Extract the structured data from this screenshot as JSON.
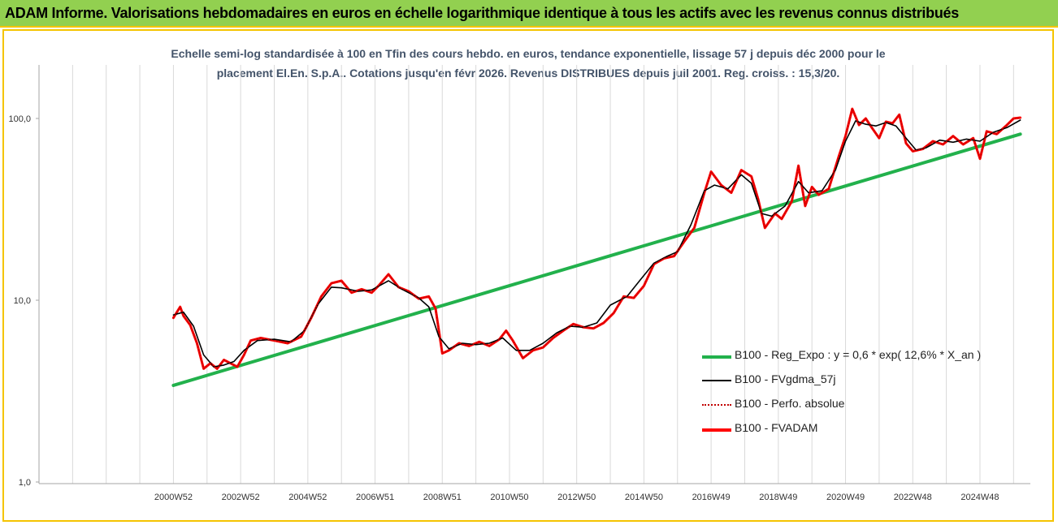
{
  "header": {
    "title": "ADAM Informe. Valorisations hebdomadaires en euros en échelle logarithmique identique à tous les actifs avec les revenus connus distribués"
  },
  "chart_data": {
    "type": "line",
    "title_line1": "Echelle semi-log standardisée à 100 en Tfin des cours hebdo. en euros, tendance exponentielle, lissage 57 j depuis déc 2000 pour le",
    "title_line2": "placement El.En. S.p.A.. Cotations jusqu'en févr 2026. Revenus DISTRIBUES depuis juil 2001. Reg. croiss. : 15,3/20.",
    "y_scale": "log",
    "ylim": [
      1,
      200
    ],
    "y_ticks": [
      1,
      10,
      100
    ],
    "y_tick_labels": [
      "1,0",
      "10,0",
      "100,0"
    ],
    "xlim": [
      1997,
      2026.5
    ],
    "x_ticks": [
      2001.0,
      2003.0,
      2005.0,
      2007.0,
      2009.0,
      2011.0,
      2013.0,
      2015.0,
      2017.0,
      2019.0,
      2021.0,
      2023.0,
      2025.0
    ],
    "x_tick_labels": [
      "2000W52",
      "2002W52",
      "2004W52",
      "2006W51",
      "2008W51",
      "2010W50",
      "2012W50",
      "2014W50",
      "2016W49",
      "2018W49",
      "2020W49",
      "2022W48",
      "2024W48"
    ],
    "grid": "vertical",
    "legend_position": "bottom-right",
    "series": [
      {
        "name": "B100 - Reg_Expo : y = 0,6 * exp( 12,6% *  X_an )",
        "color": "#22b14c",
        "style": "solid",
        "x": [
          2001.0,
          2026.2
        ],
        "y": [
          3.4,
          82
        ]
      },
      {
        "name": "B100 - FVgdma_57j",
        "color": "#000000",
        "style": "solid",
        "x": [
          2001.0,
          2001.3,
          2001.6,
          2001.9,
          2002.2,
          2002.5,
          2002.8,
          2003.1,
          2003.5,
          2004.0,
          2004.5,
          2004.9,
          2005.3,
          2005.7,
          2006.0,
          2006.5,
          2006.9,
          2007.4,
          2007.8,
          2008.3,
          2008.6,
          2008.9,
          2009.2,
          2009.6,
          2010.0,
          2010.4,
          2010.8,
          2011.2,
          2011.6,
          2012.0,
          2012.4,
          2012.8,
          2013.2,
          2013.6,
          2014.0,
          2014.5,
          2014.9,
          2015.3,
          2015.7,
          2016.0,
          2016.4,
          2016.8,
          2017.1,
          2017.5,
          2017.9,
          2018.2,
          2018.5,
          2018.8,
          2019.2,
          2019.6,
          2019.9,
          2020.3,
          2020.7,
          2021.0,
          2021.3,
          2021.6,
          2021.9,
          2022.2,
          2022.5,
          2022.8,
          2023.1,
          2023.4,
          2023.8,
          2024.2,
          2024.6,
          2025.0,
          2025.4,
          2025.8,
          2026.2
        ],
        "y": [
          8.3,
          8.6,
          7.2,
          5.0,
          4.3,
          4.4,
          4.6,
          5.3,
          6.0,
          6.1,
          5.9,
          6.8,
          9.5,
          11.8,
          11.7,
          11.2,
          11.4,
          12.8,
          11.5,
          10.3,
          9.2,
          6.3,
          5.4,
          5.8,
          5.7,
          5.8,
          6.2,
          5.3,
          5.3,
          5.8,
          6.6,
          7.2,
          7.1,
          7.5,
          9.4,
          10.5,
          13.0,
          16.0,
          17.5,
          18.5,
          26.0,
          40.0,
          43.0,
          41.0,
          49.0,
          44.0,
          30.0,
          29.0,
          33.0,
          45.0,
          39.0,
          40.0,
          52.0,
          75.0,
          97.0,
          93.0,
          91.0,
          95.0,
          91.0,
          78.0,
          67.0,
          69.0,
          76.0,
          74.0,
          77.0,
          75.0,
          84.0,
          89.0,
          98.0
        ]
      },
      {
        "name": "B100 - Perfo. absolue",
        "color": "#c00000",
        "style": "dotted",
        "x": [
          2001.0,
          2001.2,
          2001.3,
          2001.5,
          2001.7,
          2001.9,
          2002.1,
          2002.3,
          2002.5,
          2002.7,
          2002.9,
          2003.1,
          2003.3,
          2003.6,
          2004.0,
          2004.4,
          2004.8,
          2005.1,
          2005.4,
          2005.7,
          2006.0,
          2006.3,
          2006.6,
          2006.9,
          2007.1,
          2007.4,
          2007.7,
          2008.0,
          2008.3,
          2008.6,
          2008.8,
          2009.0,
          2009.2,
          2009.5,
          2009.8,
          2010.1,
          2010.4,
          2010.7,
          2010.9,
          2011.1,
          2011.4,
          2011.7,
          2012.0,
          2012.3,
          2012.6,
          2012.9,
          2013.2,
          2013.5,
          2013.8,
          2014.1,
          2014.4,
          2014.7,
          2015.0,
          2015.3,
          2015.6,
          2015.9,
          2016.2,
          2016.5,
          2016.8,
          2017.0,
          2017.3,
          2017.6,
          2017.9,
          2018.2,
          2018.4,
          2018.6,
          2018.9,
          2019.1,
          2019.4,
          2019.6,
          2019.8,
          2020.0,
          2020.2,
          2020.5,
          2020.8,
          2021.0,
          2021.2,
          2021.4,
          2021.6,
          2021.8,
          2022.0,
          2022.2,
          2022.4,
          2022.6,
          2022.8,
          2023.0,
          2023.3,
          2023.6,
          2023.9,
          2024.2,
          2024.5,
          2024.8,
          2025.0,
          2025.2,
          2025.5,
          2025.8,
          2026.0,
          2026.2
        ],
        "y": [
          8.0,
          9.2,
          8.2,
          7.3,
          5.8,
          4.2,
          4.5,
          4.2,
          4.7,
          4.5,
          4.3,
          5.0,
          6.0,
          6.2,
          6.0,
          5.8,
          6.3,
          8.0,
          10.5,
          12.4,
          12.8,
          11.0,
          11.5,
          11.0,
          12.0,
          13.9,
          11.8,
          11.2,
          10.2,
          10.5,
          9.0,
          5.1,
          5.3,
          5.8,
          5.6,
          5.9,
          5.6,
          6.1,
          6.8,
          6.0,
          4.8,
          5.3,
          5.5,
          6.2,
          6.8,
          7.4,
          7.1,
          7.0,
          7.5,
          8.5,
          10.5,
          10.3,
          12.0,
          15.8,
          17.0,
          17.5,
          21.0,
          25.0,
          39.0,
          51.0,
          43.0,
          39.0,
          52.0,
          48.0,
          36.0,
          25.0,
          30.0,
          28.0,
          35.0,
          55.0,
          33.0,
          42.0,
          38.0,
          41.0,
          62.0,
          80.0,
          113.0,
          92.0,
          100.0,
          88.0,
          78.0,
          96.0,
          94.0,
          105.0,
          73.0,
          66.0,
          68.0,
          75.0,
          72.0,
          80.0,
          72.0,
          78.0,
          60.0,
          85.0,
          82.0,
          92.0,
          100.0,
          101.0
        ]
      },
      {
        "name": "B100 - FVADAM",
        "color": "#ff0000",
        "style": "solid",
        "x": [
          2001.0,
          2001.2,
          2001.3,
          2001.5,
          2001.7,
          2001.9,
          2002.1,
          2002.3,
          2002.5,
          2002.7,
          2002.9,
          2003.1,
          2003.3,
          2003.6,
          2004.0,
          2004.4,
          2004.8,
          2005.1,
          2005.4,
          2005.7,
          2006.0,
          2006.3,
          2006.6,
          2006.9,
          2007.1,
          2007.4,
          2007.7,
          2008.0,
          2008.3,
          2008.6,
          2008.8,
          2009.0,
          2009.2,
          2009.5,
          2009.8,
          2010.1,
          2010.4,
          2010.7,
          2010.9,
          2011.1,
          2011.4,
          2011.7,
          2012.0,
          2012.3,
          2012.6,
          2012.9,
          2013.2,
          2013.5,
          2013.8,
          2014.1,
          2014.4,
          2014.7,
          2015.0,
          2015.3,
          2015.6,
          2015.9,
          2016.2,
          2016.5,
          2016.8,
          2017.0,
          2017.3,
          2017.6,
          2017.9,
          2018.2,
          2018.4,
          2018.6,
          2018.9,
          2019.1,
          2019.4,
          2019.6,
          2019.8,
          2020.0,
          2020.2,
          2020.5,
          2020.8,
          2021.0,
          2021.2,
          2021.4,
          2021.6,
          2021.8,
          2022.0,
          2022.2,
          2022.4,
          2022.6,
          2022.8,
          2023.0,
          2023.3,
          2023.6,
          2023.9,
          2024.2,
          2024.5,
          2024.8,
          2025.0,
          2025.2,
          2025.5,
          2025.8,
          2026.0,
          2026.2
        ],
        "y": [
          8.0,
          9.2,
          8.2,
          7.3,
          5.8,
          4.2,
          4.5,
          4.2,
          4.7,
          4.5,
          4.3,
          5.0,
          6.0,
          6.2,
          6.0,
          5.8,
          6.3,
          8.0,
          10.5,
          12.4,
          12.8,
          11.0,
          11.5,
          11.0,
          12.0,
          13.9,
          11.8,
          11.2,
          10.2,
          10.5,
          9.0,
          5.1,
          5.3,
          5.8,
          5.6,
          5.9,
          5.6,
          6.1,
          6.8,
          6.0,
          4.8,
          5.3,
          5.5,
          6.2,
          6.8,
          7.4,
          7.1,
          7.0,
          7.5,
          8.5,
          10.5,
          10.3,
          12.0,
          15.8,
          17.0,
          17.5,
          21.0,
          25.0,
          39.0,
          51.0,
          43.0,
          39.0,
          52.0,
          48.0,
          36.0,
          25.0,
          30.0,
          28.0,
          35.0,
          55.0,
          33.0,
          42.0,
          38.0,
          41.0,
          62.0,
          80.0,
          113.0,
          92.0,
          100.0,
          88.0,
          78.0,
          96.0,
          94.0,
          105.0,
          73.0,
          66.0,
          68.0,
          75.0,
          72.0,
          80.0,
          72.0,
          78.0,
          60.0,
          85.0,
          82.0,
          92.0,
          100.0,
          101.0
        ]
      }
    ]
  }
}
